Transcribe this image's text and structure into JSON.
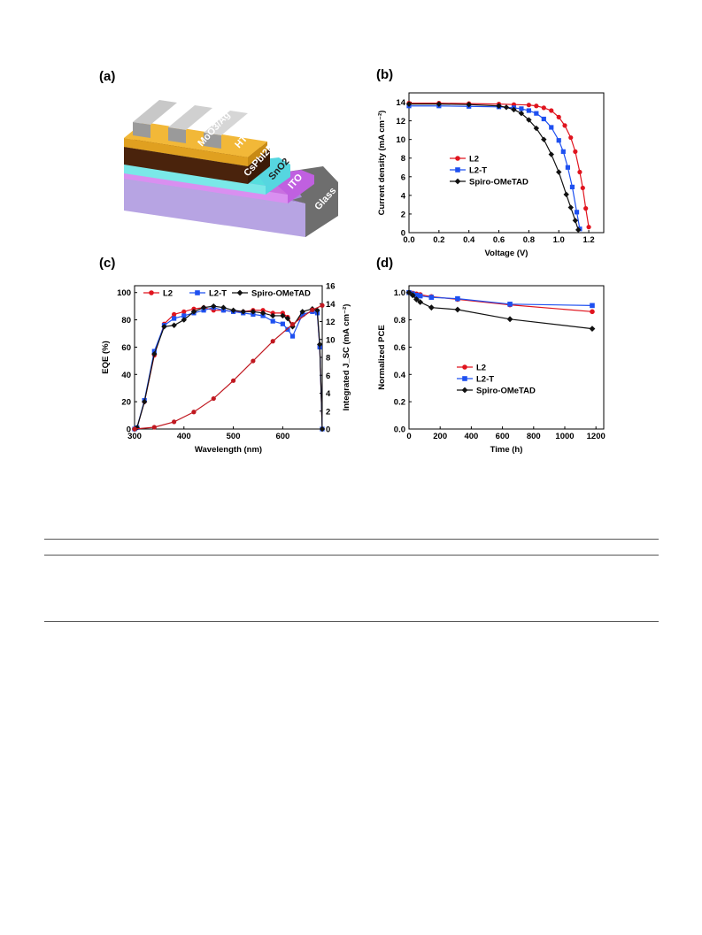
{
  "panels": {
    "a": "(a)",
    "b": "(b)",
    "c": "(c)",
    "d": "(d)"
  },
  "diagram_a": {
    "layers": [
      "MoO3/Ag",
      "HTM",
      "CsPbI2Br",
      "SnO2",
      "ITO",
      "Glass"
    ]
  },
  "chart_data": [
    {
      "panel": "b",
      "type": "line",
      "xlabel": "Voltage (V)",
      "ylabel": "Current density (mA cm⁻²)",
      "xlim": [
        0.0,
        1.3
      ],
      "ylim": [
        0,
        15
      ],
      "xticks": [
        "0.0",
        "0.2",
        "0.4",
        "0.6",
        "0.8",
        "1.0",
        "1.2"
      ],
      "yticks": [
        "0",
        "2",
        "4",
        "6",
        "8",
        "10",
        "12",
        "14"
      ],
      "legend_position": "middle-left",
      "series": [
        {
          "name": "L2",
          "color": "#e0141e",
          "marker": "circle",
          "x": [
            0.0,
            0.2,
            0.4,
            0.6,
            0.7,
            0.8,
            0.85,
            0.9,
            0.95,
            1.0,
            1.04,
            1.08,
            1.11,
            1.14,
            1.16,
            1.18,
            1.2
          ],
          "y": [
            13.9,
            13.9,
            13.85,
            13.8,
            13.75,
            13.7,
            13.6,
            13.4,
            13.1,
            12.4,
            11.5,
            10.2,
            8.7,
            6.5,
            4.8,
            2.6,
            0.6
          ]
        },
        {
          "name": "L2-T",
          "color": "#1e50f0",
          "marker": "square",
          "x": [
            0.0,
            0.2,
            0.4,
            0.6,
            0.7,
            0.75,
            0.8,
            0.85,
            0.9,
            0.95,
            1.0,
            1.03,
            1.06,
            1.09,
            1.12,
            1.14
          ],
          "y": [
            13.6,
            13.6,
            13.55,
            13.5,
            13.4,
            13.3,
            13.1,
            12.8,
            12.2,
            11.3,
            9.9,
            8.7,
            7.0,
            4.9,
            2.2,
            0.4
          ]
        },
        {
          "name": "Spiro-OMeTAD",
          "color": "#111111",
          "marker": "diamond",
          "x": [
            0.0,
            0.2,
            0.4,
            0.6,
            0.65,
            0.7,
            0.75,
            0.8,
            0.85,
            0.9,
            0.95,
            1.0,
            1.05,
            1.08,
            1.11,
            1.13
          ],
          "y": [
            13.8,
            13.8,
            13.75,
            13.6,
            13.45,
            13.2,
            12.8,
            12.1,
            11.2,
            10.0,
            8.4,
            6.5,
            4.1,
            2.7,
            1.3,
            0.3
          ]
        }
      ]
    },
    {
      "panel": "c",
      "type": "line",
      "xlabel": "Wavelength (nm)",
      "ylabel": "EQE (%)",
      "y2label": "Integrated J_SC (mA cm⁻²)",
      "xlim": [
        300,
        680
      ],
      "ylim": [
        0,
        105
      ],
      "y2lim": [
        0,
        16
      ],
      "xticks": [
        "300",
        "400",
        "500",
        "600"
      ],
      "yticks": [
        "0",
        "20",
        "40",
        "60",
        "80",
        "100"
      ],
      "y2ticks": [
        "0",
        "2",
        "4",
        "6",
        "8",
        "10",
        "12",
        "14",
        "16"
      ],
      "legend_position": "top",
      "series": [
        {
          "name": "L2",
          "color": "#e0141e",
          "marker": "circle",
          "x": [
            300,
            305,
            320,
            340,
            360,
            380,
            400,
            420,
            440,
            460,
            480,
            500,
            520,
            540,
            560,
            580,
            600,
            610,
            620,
            640,
            660,
            670,
            675,
            680
          ],
          "y": [
            0,
            1,
            20,
            54,
            77,
            84,
            86,
            88,
            89,
            87,
            87,
            86,
            86,
            87,
            87,
            85,
            85,
            82,
            76,
            84,
            86,
            85,
            60,
            0
          ]
        },
        {
          "name": "L2-T",
          "color": "#1e50f0",
          "marker": "square",
          "x": [
            300,
            305,
            320,
            340,
            360,
            380,
            400,
            420,
            440,
            460,
            480,
            500,
            520,
            540,
            560,
            580,
            600,
            610,
            620,
            640,
            660,
            670,
            675,
            680
          ],
          "y": [
            0,
            1,
            21,
            57,
            76,
            81,
            83,
            85,
            87,
            89,
            87,
            86,
            85,
            84,
            83,
            79,
            77,
            73,
            68,
            84,
            86,
            85,
            60,
            0
          ]
        },
        {
          "name": "Spiro-OMeTAD",
          "color": "#111111",
          "marker": "diamond",
          "x": [
            300,
            305,
            320,
            340,
            360,
            380,
            400,
            420,
            440,
            460,
            480,
            500,
            520,
            540,
            560,
            580,
            600,
            610,
            620,
            640,
            660,
            670,
            675,
            680
          ],
          "y": [
            0,
            1,
            20,
            55,
            75,
            76,
            80,
            86,
            89,
            90,
            89,
            87,
            86,
            86,
            85,
            83,
            83,
            81,
            75,
            86,
            88,
            87,
            62,
            0
          ]
        },
        {
          "name": "",
          "axis": "y2",
          "color": "#c01820",
          "marker": "circle",
          "x": [
            300,
            340,
            380,
            420,
            460,
            500,
            540,
            580,
            620,
            660,
            680
          ],
          "y": [
            0,
            0.2,
            0.8,
            1.9,
            3.4,
            5.4,
            7.6,
            9.8,
            11.7,
            13.3,
            13.8
          ]
        }
      ]
    },
    {
      "panel": "d",
      "type": "line",
      "xlabel": "Time (h)",
      "ylabel": "Normalized PCE",
      "xlim": [
        0,
        1250
      ],
      "ylim": [
        0.0,
        1.05
      ],
      "xticks": [
        "0",
        "200",
        "400",
        "600",
        "800",
        "1000",
        "1200"
      ],
      "yticks": [
        "0.0",
        "0.2",
        "0.4",
        "0.6",
        "0.8",
        "1.0"
      ],
      "legend_position": "bottom-left",
      "series": [
        {
          "name": "L2",
          "color": "#e0141e",
          "marker": "circle",
          "x": [
            0,
            24,
            48,
            72,
            144,
            312,
            648,
            1176
          ],
          "y": [
            1.0,
            0.995,
            0.99,
            0.985,
            0.97,
            0.95,
            0.91,
            0.86
          ]
        },
        {
          "name": "L2-T",
          "color": "#1e50f0",
          "marker": "square",
          "x": [
            0,
            24,
            48,
            72,
            144,
            312,
            648,
            1176
          ],
          "y": [
            1.0,
            0.99,
            0.98,
            0.975,
            0.965,
            0.955,
            0.915,
            0.905
          ]
        },
        {
          "name": "Spiro-OMeTAD",
          "color": "#111111",
          "marker": "diamond",
          "x": [
            0,
            24,
            48,
            72,
            144,
            312,
            648,
            1176
          ],
          "y": [
            1.0,
            0.98,
            0.95,
            0.93,
            0.89,
            0.875,
            0.805,
            0.735
          ]
        }
      ]
    }
  ]
}
